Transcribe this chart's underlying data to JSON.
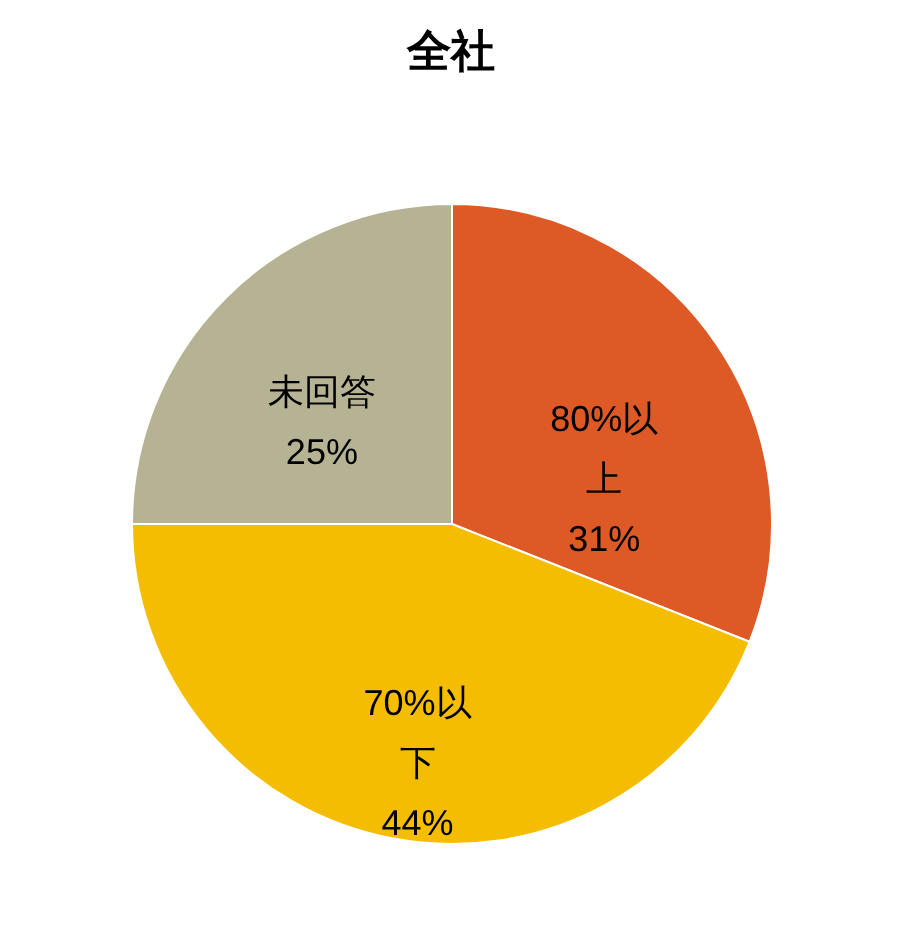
{
  "chart_data": {
    "type": "pie",
    "title": "全社",
    "categories": [
      "80%以上",
      "70%以下",
      "未回答"
    ],
    "values": [
      31,
      44,
      25
    ],
    "colors": [
      "#dd5a26",
      "#f5bd00",
      "#b5b393"
    ],
    "value_labels": [
      "31%",
      "44%",
      "25%"
    ]
  }
}
